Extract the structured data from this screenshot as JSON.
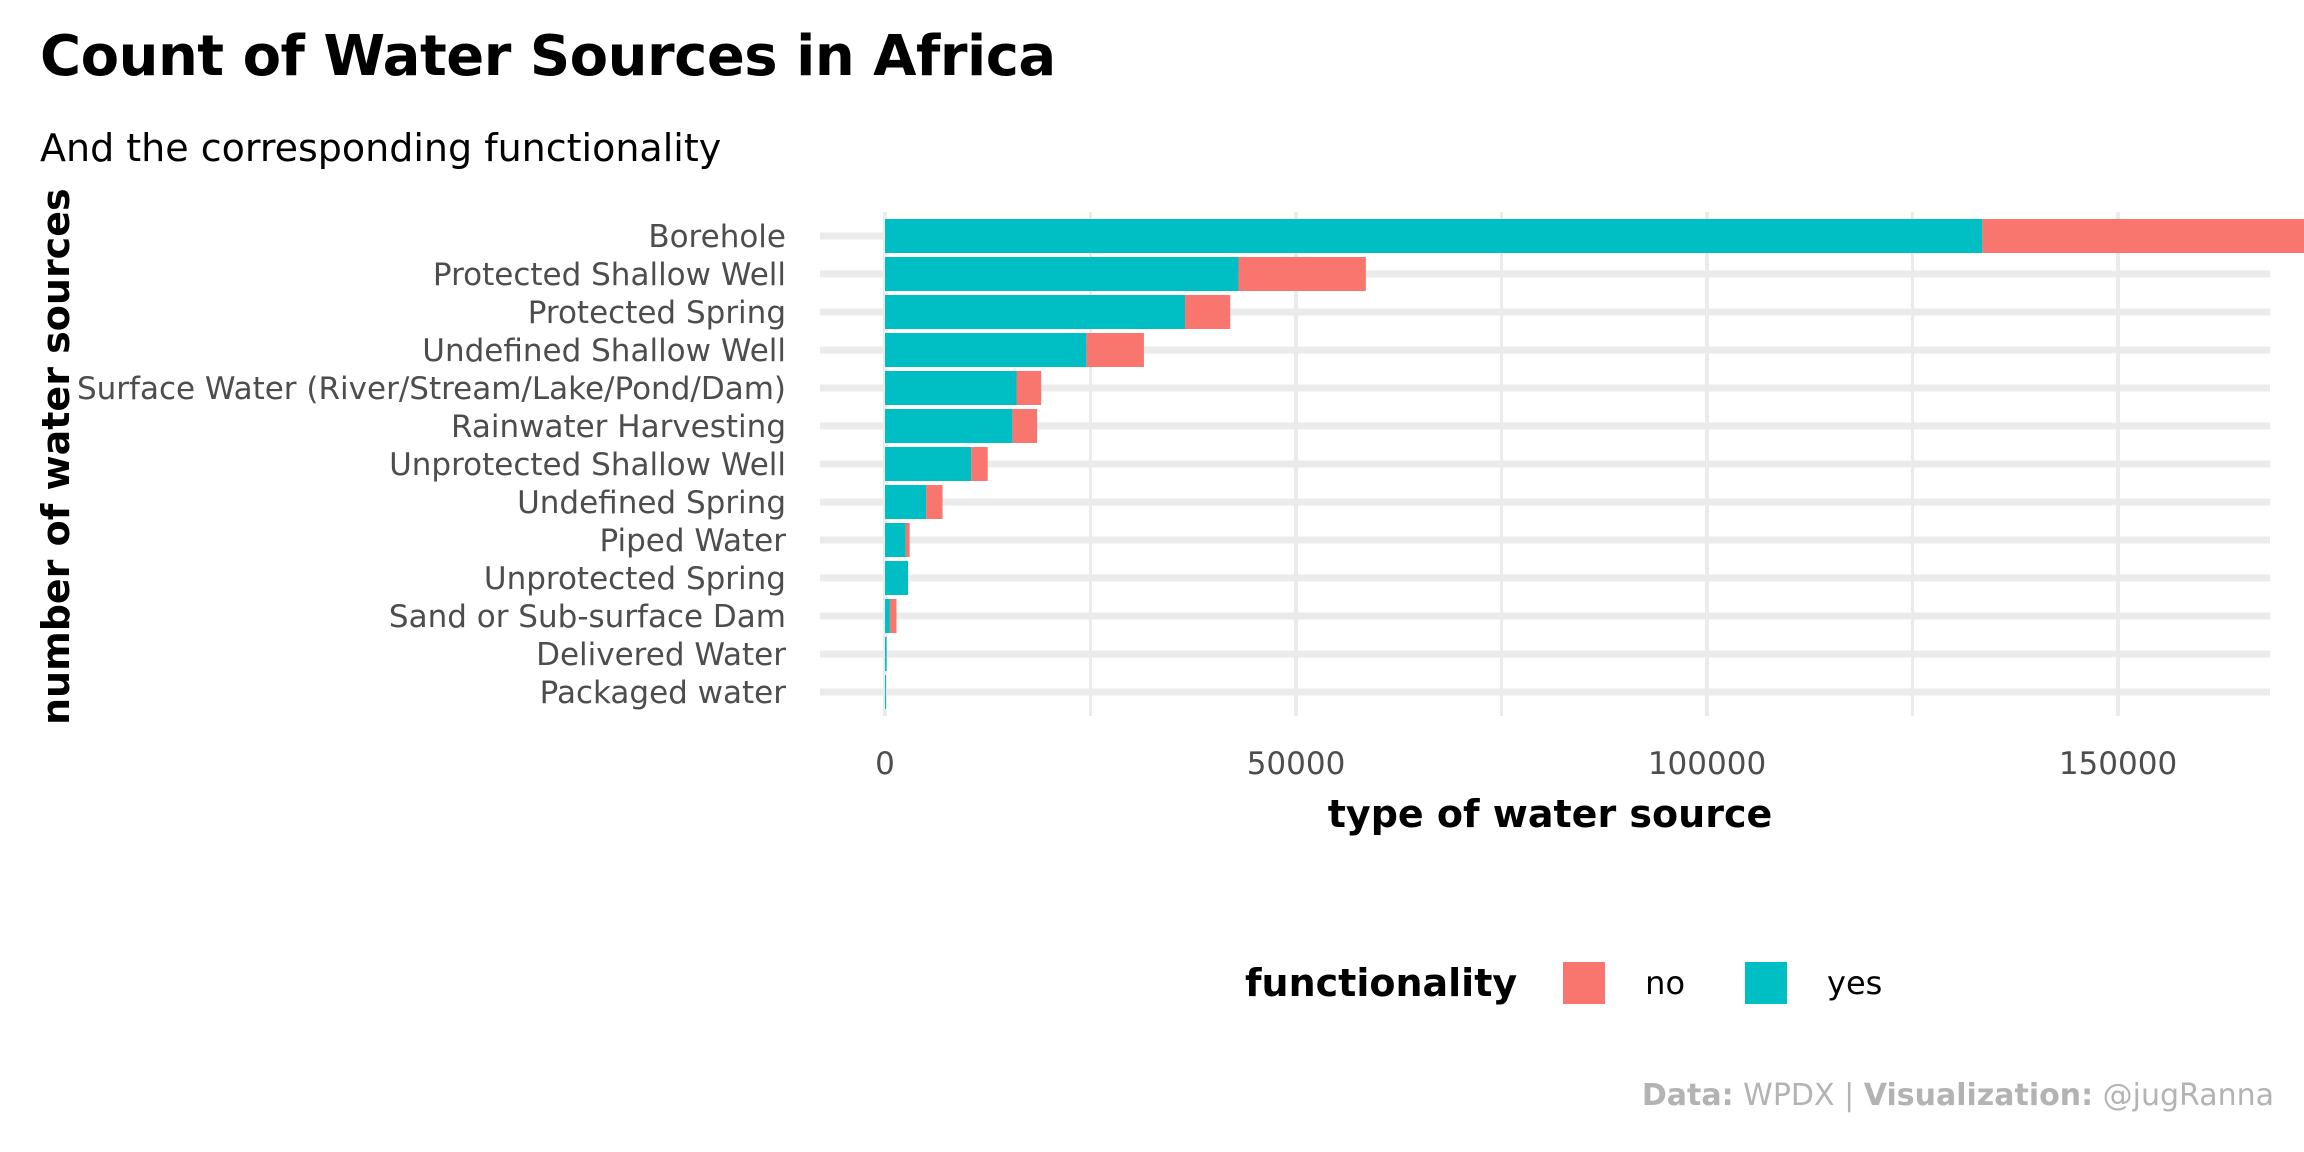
{
  "title": "Count of Water Sources in Africa",
  "subtitle": "And the corresponding functionality",
  "caption": {
    "data_label": "Data:",
    "data_value": "WPDX",
    "separator": "|",
    "viz_label": "Visualization:",
    "viz_value": "@jugRanna"
  },
  "legend": {
    "title": "functionality",
    "items": [
      {
        "label": "no",
        "color": "#F8766D"
      },
      {
        "label": "yes",
        "color": "#00BFC4"
      }
    ]
  },
  "chart_data": {
    "type": "bar",
    "orientation": "horizontal",
    "stacked": true,
    "title": "Count of Water Sources in Africa",
    "subtitle": "And the corresponding functionality",
    "xlabel": "type of water source",
    "ylabel": "number of water sources",
    "xlim": [
      0,
      188000
    ],
    "xticks": [
      0,
      50000,
      100000,
      150000
    ],
    "xtick_labels": [
      "0",
      "50000",
      "100000",
      "150000"
    ],
    "grid": true,
    "legend_position": "bottom",
    "categories": [
      "Borehole",
      "Protected Shallow Well",
      "Protected Spring",
      "Undefined Shallow Well",
      "Surface Water (River/Stream/Lake/Pond/Dam)",
      "Rainwater Harvesting",
      "Unprotected Shallow Well",
      "Undefined Spring",
      "Piped Water",
      "Unprotected Spring",
      "Sand or Sub-surface Dam",
      "Delivered Water",
      "Packaged water"
    ],
    "series": [
      {
        "name": "yes",
        "color": "#00BFC4",
        "values": [
          133500,
          43000,
          36500,
          24500,
          16000,
          15500,
          10500,
          5000,
          2500,
          2800,
          600,
          200,
          50
        ]
      },
      {
        "name": "no",
        "color": "#F8766D",
        "values": [
          53500,
          15500,
          5500,
          7000,
          3000,
          3000,
          2000,
          2000,
          500,
          0,
          800,
          0,
          0
        ]
      }
    ]
  }
}
